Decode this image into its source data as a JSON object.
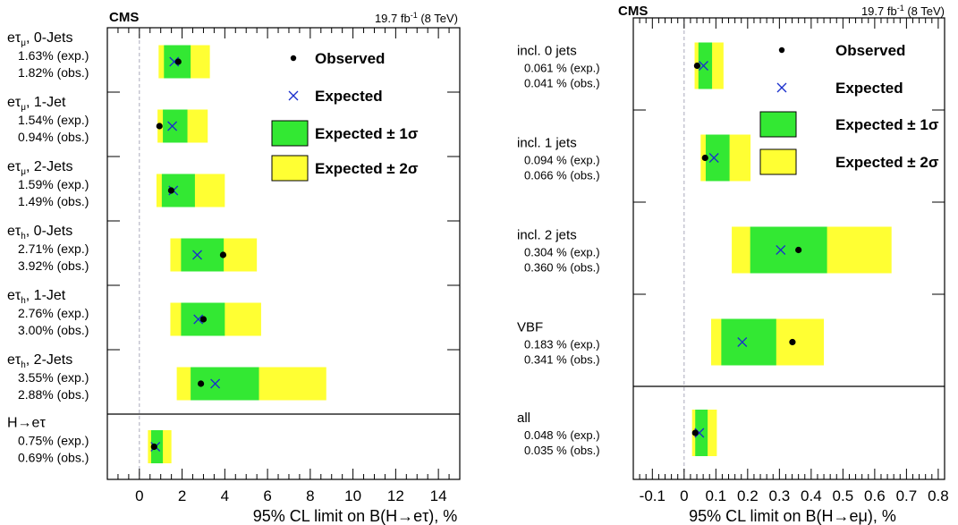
{
  "chart_data": [
    {
      "type": "limit-plot",
      "experiment": "CMS",
      "luminosity_prefix": "19.7 fb",
      "luminosity_sup": "-1",
      "energy": " (8 TeV)",
      "xlabel": "95% CL limit on B(H→eτ), %",
      "xlim": [
        -1.5,
        15
      ],
      "xticks": [
        "0",
        "2",
        "4",
        "6",
        "8",
        "10",
        "12",
        "14"
      ],
      "xtick_values": [
        0,
        2,
        4,
        6,
        8,
        10,
        12,
        14
      ],
      "legend": {
        "observed": "Observed",
        "expected": "Expected",
        "one_sigma": "Expected ± 1σ",
        "two_sigma": "Expected ± 2σ"
      },
      "categories": [
        {
          "name": "eτ",
          "sub": "μ",
          "suffix": ", 0-Jets",
          "exp_label": "1.63% (exp.)",
          "obs_label": "1.82% (obs.)",
          "expected": 1.63,
          "observed": 1.82,
          "s1": [
            1.15,
            2.4
          ],
          "s2": [
            0.9,
            3.3
          ]
        },
        {
          "name": "eτ",
          "sub": "μ",
          "suffix": ", 1-Jet",
          "exp_label": "1.54% (exp.)",
          "obs_label": "0.94% (obs.)",
          "expected": 1.54,
          "observed": 0.94,
          "s1": [
            1.1,
            2.25
          ],
          "s2": [
            0.85,
            3.2
          ]
        },
        {
          "name": "eτ",
          "sub": "μ",
          "suffix": ", 2-Jets",
          "exp_label": "1.59% (exp.)",
          "obs_label": "1.49% (obs.)",
          "expected": 1.59,
          "observed": 1.49,
          "s1": [
            1.05,
            2.6
          ],
          "s2": [
            0.8,
            4.0
          ]
        },
        {
          "name": "eτ",
          "sub": "h",
          "suffix": ", 0-Jets",
          "exp_label": "2.71% (exp.)",
          "obs_label": "3.92% (obs.)",
          "expected": 2.71,
          "observed": 3.92,
          "s1": [
            1.95,
            3.95
          ],
          "s2": [
            1.45,
            5.5
          ]
        },
        {
          "name": "eτ",
          "sub": "h",
          "suffix": ", 1-Jet",
          "exp_label": "2.76% (exp.)",
          "obs_label": "3.00% (obs.)",
          "expected": 2.76,
          "observed": 3.0,
          "s1": [
            1.95,
            4.0
          ],
          "s2": [
            1.45,
            5.7
          ]
        },
        {
          "name": "eτ",
          "sub": "h",
          "suffix": ", 2-Jets",
          "exp_label": "3.55% (exp.)",
          "obs_label": "2.88% (obs.)",
          "expected": 3.55,
          "observed": 2.88,
          "s1": [
            2.4,
            5.6
          ],
          "s2": [
            1.75,
            8.75
          ]
        },
        {
          "name": "H→eτ",
          "sub": "",
          "suffix": "",
          "exp_label": "0.75% (exp.)",
          "obs_label": "0.69% (obs.)",
          "expected": 0.75,
          "observed": 0.69,
          "s1": [
            0.55,
            1.1
          ],
          "s2": [
            0.4,
            1.5
          ]
        }
      ]
    },
    {
      "type": "limit-plot",
      "experiment": "CMS",
      "luminosity_prefix": "19.7 fb",
      "luminosity_sup": "-1",
      "energy": " (8 TeV)",
      "xlabel": "95% CL limit on B(H→eμ), %",
      "xlim": [
        -0.16,
        0.82
      ],
      "xticks": [
        "-0.1",
        "0",
        "0.1",
        "0.2",
        "0.3",
        "0.4",
        "0.5",
        "0.6",
        "0.7",
        "0.8"
      ],
      "xtick_values": [
        -0.1,
        0,
        0.1,
        0.2,
        0.3,
        0.4,
        0.5,
        0.6,
        0.7,
        0.8
      ],
      "legend": {
        "observed": "Observed",
        "expected": "Expected",
        "one_sigma": "Expected ± 1σ",
        "two_sigma": "Expected ± 2σ"
      },
      "categories": [
        {
          "name": "incl. 0 jets",
          "exp_label": "0.061 % (exp.)",
          "obs_label": "0.041 % (obs.)",
          "expected": 0.061,
          "observed": 0.041,
          "s1": [
            0.045,
            0.088
          ],
          "s2": [
            0.033,
            0.124
          ]
        },
        {
          "name": "incl. 1 jets",
          "exp_label": "0.094 % (exp.)",
          "obs_label": "0.066 % (obs.)",
          "expected": 0.094,
          "observed": 0.066,
          "s1": [
            0.068,
            0.143
          ],
          "s2": [
            0.052,
            0.209
          ]
        },
        {
          "name": "incl. 2 jets",
          "exp_label": "0.304 % (exp.)",
          "obs_label": "0.360 % (obs.)",
          "expected": 0.304,
          "observed": 0.36,
          "s1": [
            0.208,
            0.45
          ],
          "s2": [
            0.15,
            0.653
          ]
        },
        {
          "name": "VBF",
          "exp_label": "0.183 % (exp.)",
          "obs_label": "0.341 % (obs.)",
          "expected": 0.183,
          "observed": 0.341,
          "s1": [
            0.117,
            0.29
          ],
          "s2": [
            0.085,
            0.44
          ]
        },
        {
          "name": "all",
          "exp_label": "0.048 % (exp.)",
          "obs_label": "0.035 % (obs.)",
          "expected": 0.048,
          "observed": 0.035,
          "s1": [
            0.035,
            0.074
          ],
          "s2": [
            0.025,
            0.103
          ]
        }
      ]
    }
  ]
}
